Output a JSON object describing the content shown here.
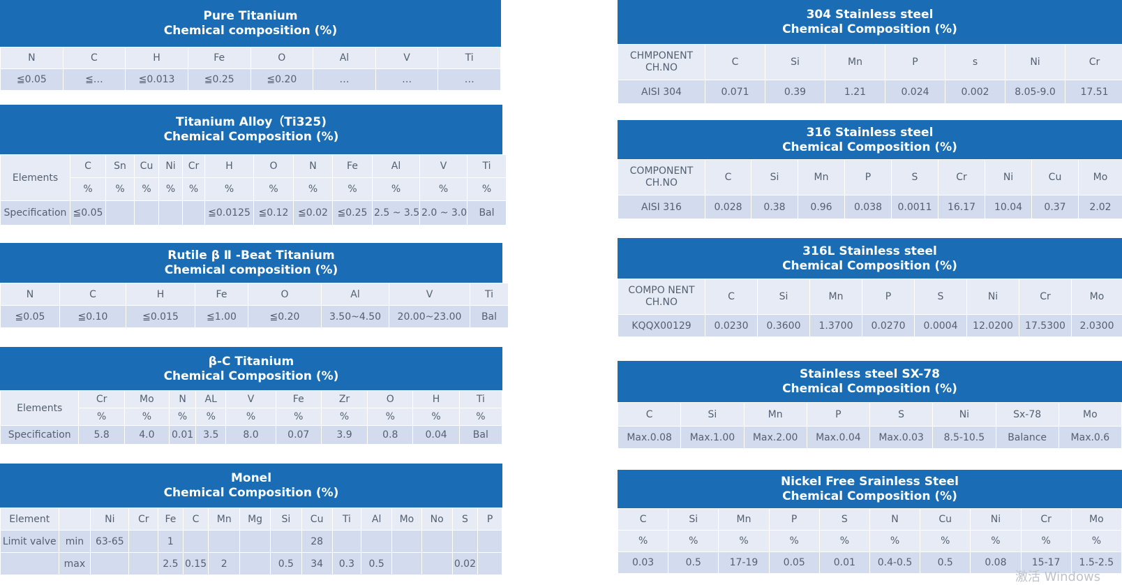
{
  "pure_titanium": {
    "title1": "Pure Titanium",
    "title2": "Chemical composition (%)",
    "headers": [
      "N",
      "C",
      "H",
      "Fe",
      "O",
      "Al",
      "V",
      "Ti"
    ],
    "values": [
      "≦0.05",
      "≦…",
      "≦0.013",
      "≦0.25",
      "≦0.20",
      "…",
      "…",
      "…"
    ]
  },
  "ti325": {
    "title1": "Titanium Alloy（Ti325)",
    "title2": "Chemical Composition (%)",
    "row_label": "Elements",
    "elements": [
      "C",
      "Sn",
      "Cu",
      "Ni",
      "Cr",
      "H",
      "O",
      "N",
      "Fe",
      "Al",
      "V",
      "Ti"
    ],
    "units": [
      "%",
      "%",
      "%",
      "%",
      "%",
      "%",
      "%",
      "%",
      "%",
      "%",
      "%",
      "%"
    ],
    "spec_label": "Specification",
    "spec": [
      "≦0.05",
      "",
      "",
      "",
      "",
      "≦0.0125",
      "≦0.12",
      "≦0.02",
      "≦0.25",
      "2.5 ~ 3.5",
      "2.0 ~ 3.0",
      "Bal"
    ]
  },
  "rutile": {
    "title1": "Rutile β Ⅱ -Beat Titanium",
    "title2": "Chemical composition (%)",
    "headers": [
      "N",
      "C",
      "H",
      "Fe",
      "O",
      "Al",
      "V",
      "Ti"
    ],
    "values": [
      "≦0.05",
      "≦0.10",
      "≦0.015",
      "≦1.00",
      "≦0.20",
      "3.50~4.50",
      "20.00~23.00",
      "Bal"
    ]
  },
  "beta_c": {
    "title1": "β-C Titanium",
    "title2": "Chemical Composition (%)",
    "row_label": "Elements",
    "elements": [
      "Cr",
      "Mo",
      "N",
      "AL",
      "V",
      "Fe",
      "Zr",
      "O",
      "H",
      "Ti"
    ],
    "units": [
      "%",
      "%",
      "%",
      "%",
      "%",
      "%",
      "%",
      "%",
      "%",
      "%"
    ],
    "spec_label": "Specification",
    "spec": [
      "5.8",
      "4.0",
      "0.01",
      "3.5",
      "8.0",
      "0.07",
      "3.9",
      "0.8",
      "0.04",
      "Bal"
    ]
  },
  "monel": {
    "title1": "Monel",
    "title2": "Chemical Composition (%)",
    "element_label": "Element",
    "elements": [
      "Ni",
      "Cr",
      "Fe",
      "C",
      "Mn",
      "Mg",
      "Si",
      "Cu",
      "Ti",
      "Al",
      "Mo",
      "No",
      "S",
      "P"
    ],
    "limit_label": "Limit valve",
    "min_label": "min",
    "min": [
      "63-65",
      "",
      "1",
      "",
      "",
      "",
      "",
      "28",
      "",
      "",
      "",
      "",
      "",
      ""
    ],
    "max_label": "max",
    "max": [
      "",
      "",
      "2.5",
      "0.15",
      "2",
      "",
      "0.5",
      "34",
      "0.3",
      "0.5",
      "",
      "",
      "0.02",
      ""
    ]
  },
  "ss304": {
    "title1": "304 Stainless steel",
    "title2": "Chemical Composition (%)",
    "corner": "CHMPONENT CH.NO",
    "headers": [
      "C",
      "Si",
      "Mn",
      "P",
      "s",
      "Ni",
      "Cr"
    ],
    "row_label": "AISI 304",
    "values": [
      "0.071",
      "0.39",
      "1.21",
      "0.024",
      "0.002",
      "8.05-9.0",
      "17.51"
    ]
  },
  "ss316": {
    "title1": "316 Stainless steel",
    "title2": "Chemical Composition (%)",
    "corner": "COMPONENT CH.NO",
    "headers": [
      "C",
      "Si",
      "Mn",
      "P",
      "S",
      "Cr",
      "Ni",
      "Cu",
      "Mo"
    ],
    "row_label": "AISI 316",
    "values": [
      "0.028",
      "0.38",
      "0.96",
      "0.038",
      "0.0011",
      "16.17",
      "10.04",
      "0.37",
      "2.02"
    ]
  },
  "ss316l": {
    "title1": "316L Stainless steel",
    "title2": "Chemical Composition (%)",
    "corner": "COMPO NENT CH.NO",
    "headers": [
      "C",
      "Si",
      "Mn",
      "P",
      "S",
      "Ni",
      "Cr",
      "Mo"
    ],
    "row_label": "KQQX00129",
    "values": [
      "0.0230",
      "0.3600",
      "1.3700",
      "0.0270",
      "0.0004",
      "12.0200",
      "17.5300",
      "2.0300"
    ]
  },
  "sx78": {
    "title1": "Stainless steel SX-78",
    "title2": "Chemical Composition (%)",
    "headers": [
      "C",
      "Si",
      "Mn",
      "P",
      "S",
      "Ni",
      "Sx-78",
      "Mo"
    ],
    "values": [
      "Max.0.08",
      "Max.1.00",
      "Max.2.00",
      "Max.0.04",
      "Max.0.03",
      "8.5-10.5",
      "Balance",
      "Max.0.6"
    ]
  },
  "nickel_free": {
    "title1": "Nickel Free Srainless Steel",
    "title2": "Chemical Composition (%)",
    "headers": [
      "C",
      "Si",
      "Mn",
      "P",
      "S",
      "N",
      "Cu",
      "Ni",
      "Cr",
      "Mo"
    ],
    "units": [
      "%",
      "%",
      "%",
      "%",
      "%",
      "%",
      "%",
      "%",
      "%",
      "%"
    ],
    "values": [
      "0.03",
      "0.5",
      "17-19",
      "0.05",
      "0.01",
      "0.4-0.5",
      "0.5",
      "0.08",
      "15-17",
      "1.5-2.5"
    ]
  },
  "watermark": "激活 Windows"
}
